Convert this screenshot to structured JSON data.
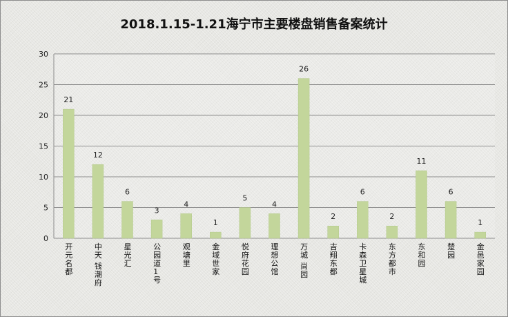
{
  "chart_data": {
    "type": "bar",
    "title": "2018.1.15-1.21海宁市主要楼盘销售备案统计",
    "xlabel": "",
    "ylabel": "",
    "ylim": [
      0,
      30
    ],
    "yticks": [
      0,
      5,
      10,
      15,
      20,
      25,
      30
    ],
    "grid": true,
    "legend": "none",
    "bar_color": "#c3d69b",
    "categories": [
      "开元名都",
      "中天 钱潮府",
      "星光汇",
      "公园道1号",
      "观塘里",
      "金域世家",
      "悦府花园",
      "理想公馆",
      "万城 尚园",
      "吉翔东都",
      "卡森卫星城",
      "东方都市",
      "东和园",
      "楚园",
      "金邑家园"
    ],
    "values": [
      21,
      12,
      6,
      3,
      4,
      1,
      5,
      4,
      26,
      2,
      6,
      2,
      11,
      6,
      1
    ]
  }
}
